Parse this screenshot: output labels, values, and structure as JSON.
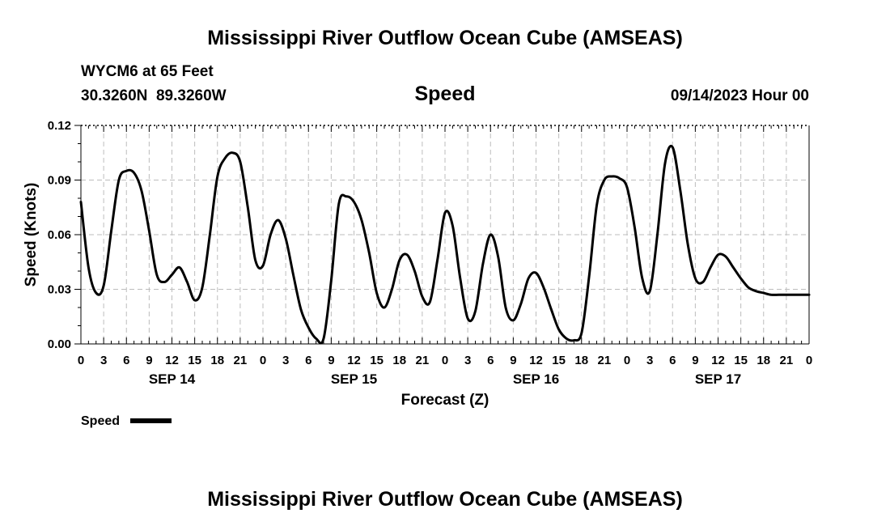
{
  "page": {
    "top_title": "Mississippi River Outflow Ocean Cube (AMSEAS)",
    "bottom_title": "Mississippi River Outflow Ocean Cube (AMSEAS)",
    "station_line": "WYCM6 at 65 Feet",
    "coords_line": "30.3260N  89.3260W",
    "chart_title": "Speed",
    "datetime": "09/14/2023 Hour 00"
  },
  "chart_data": {
    "type": "line",
    "title": "Speed",
    "xlabel": "Forecast (Z)",
    "ylabel": "Speed (Knots)",
    "xlim": [
      0,
      96
    ],
    "ylim": [
      0,
      0.12
    ],
    "yticks": [
      0.0,
      0.03,
      0.06,
      0.09,
      0.12
    ],
    "ytick_labels": [
      "0.00",
      "0.03",
      "0.06",
      "0.09",
      "0.12"
    ],
    "xtick_labels": [
      "0",
      "3",
      "6",
      "9",
      "12",
      "15",
      "18",
      "21",
      "0",
      "3",
      "6",
      "9",
      "12",
      "15",
      "18",
      "21",
      "0",
      "3",
      "6",
      "9",
      "12",
      "15",
      "18",
      "21",
      "0",
      "3",
      "6",
      "9",
      "12",
      "15",
      "18",
      "21",
      "0"
    ],
    "day_labels": [
      {
        "label": "SEP 14",
        "x": 12
      },
      {
        "label": "SEP 15",
        "x": 36
      },
      {
        "label": "SEP 16",
        "x": 60
      },
      {
        "label": "SEP 17",
        "x": 84
      }
    ],
    "grid": true,
    "legend": {
      "label": "Speed",
      "placement": "bottom-left"
    },
    "series": [
      {
        "name": "Speed",
        "color": "#000000",
        "x": [
          0,
          1,
          2,
          3,
          4,
          5,
          6,
          7,
          8,
          9,
          10,
          11,
          12,
          13,
          14,
          15,
          16,
          17,
          18,
          19,
          20,
          21,
          22,
          23,
          24,
          25,
          26,
          27,
          28,
          29,
          30,
          31,
          32,
          33,
          34,
          35,
          36,
          37,
          38,
          39,
          40,
          41,
          42,
          43,
          44,
          45,
          46,
          47,
          48,
          49,
          50,
          51,
          52,
          53,
          54,
          55,
          56,
          57,
          58,
          59,
          60,
          61,
          62,
          63,
          64,
          65,
          66,
          67,
          68,
          69,
          70,
          71,
          72,
          73,
          74,
          75,
          76,
          77,
          78,
          79,
          80,
          81,
          82,
          83,
          84,
          85,
          86,
          87,
          88,
          89,
          90,
          91,
          92,
          93,
          94,
          95,
          96
        ],
        "y": [
          0.078,
          0.042,
          0.028,
          0.032,
          0.062,
          0.09,
          0.095,
          0.094,
          0.084,
          0.062,
          0.038,
          0.034,
          0.038,
          0.042,
          0.034,
          0.024,
          0.031,
          0.06,
          0.092,
          0.102,
          0.105,
          0.1,
          0.075,
          0.046,
          0.043,
          0.06,
          0.068,
          0.058,
          0.038,
          0.019,
          0.009,
          0.003,
          0.003,
          0.035,
          0.077,
          0.081,
          0.078,
          0.068,
          0.05,
          0.028,
          0.02,
          0.03,
          0.046,
          0.049,
          0.04,
          0.026,
          0.023,
          0.046,
          0.072,
          0.065,
          0.036,
          0.014,
          0.018,
          0.044,
          0.06,
          0.048,
          0.02,
          0.013,
          0.022,
          0.036,
          0.039,
          0.031,
          0.019,
          0.008,
          0.003,
          0.002,
          0.006,
          0.037,
          0.076,
          0.09,
          0.092,
          0.091,
          0.086,
          0.064,
          0.036,
          0.029,
          0.06,
          0.099,
          0.108,
          0.085,
          0.055,
          0.036,
          0.034,
          0.042,
          0.049,
          0.048,
          0.042,
          0.036,
          0.031,
          0.029,
          0.028,
          0.027,
          0.027,
          0.027,
          0.027,
          0.027,
          0.027
        ]
      }
    ]
  }
}
